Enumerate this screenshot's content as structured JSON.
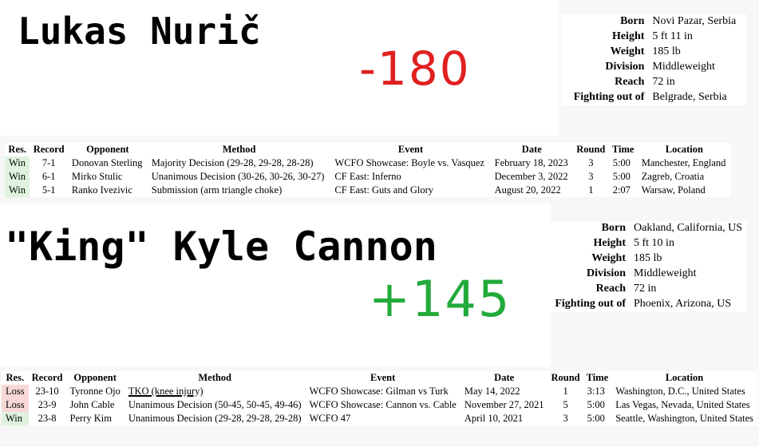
{
  "fighter1": {
    "name": "Lukas Nurič",
    "odds": "-180",
    "odds_color": "#e02020",
    "info": [
      {
        "label": "Born",
        "value": "Novi Pazar, Serbia"
      },
      {
        "label": "Height",
        "value": "5 ft 11 in"
      },
      {
        "label": "Weight",
        "value": "185 lb"
      },
      {
        "label": "Division",
        "value": "Middleweight"
      },
      {
        "label": "Reach",
        "value": "72 in"
      },
      {
        "label": "Fighting out of",
        "value": "Belgrade, Serbia"
      }
    ],
    "record_headers": [
      "Res.",
      "Record",
      "Opponent",
      "Method",
      "Event",
      "Date",
      "Round",
      "Time",
      "Location"
    ],
    "fights": [
      {
        "res": "Win",
        "record": "7-1",
        "opponent": "Donovan Sterling",
        "method": "Majority Decision (29-28, 29-28, 28-28)",
        "event": "WCFO Showcase: Boyle vs. Vasquez",
        "date": "February 18, 2023",
        "round": "3",
        "time": "5:00",
        "location": "Manchester, England"
      },
      {
        "res": "Win",
        "record": "6-1",
        "opponent": "Mirko Stulic",
        "method": "Unanimous Decision (30-26, 30-26, 30-27)",
        "event": "CF East: Inferno",
        "date": "December 3, 2022",
        "round": "3",
        "time": "5:00",
        "location": "Zagreb, Croatia"
      },
      {
        "res": "Win",
        "record": "5-1",
        "opponent": "Ranko Ivezivic",
        "method": "Submission (arm triangle choke)",
        "event": "CF East: Guts and Glory",
        "date": "August 20, 2022",
        "round": "1",
        "time": "2:07",
        "location": "Warsaw, Poland"
      }
    ]
  },
  "fighter2": {
    "name": "\"King\" Kyle Cannon",
    "odds": "+145",
    "odds_color": "#22aa3a",
    "info": [
      {
        "label": "Born",
        "value": "Oakland, California, US"
      },
      {
        "label": "Height",
        "value": "5 ft 10 in"
      },
      {
        "label": "Weight",
        "value": "185 lb"
      },
      {
        "label": "Division",
        "value": "Middleweight"
      },
      {
        "label": "Reach",
        "value": "72 in"
      },
      {
        "label": "Fighting out of",
        "value": "Phoenix, Arizona, US"
      }
    ],
    "record_headers": [
      "Res.",
      "Record",
      "Opponent",
      "Method",
      "Event",
      "Date",
      "Round",
      "Time",
      "Location"
    ],
    "fights": [
      {
        "res": "Loss",
        "record": "23-10",
        "opponent": "Tyronne Ojo",
        "method": "TKO (knee injury)",
        "event": "WCFO Showcase: Gilman vs Turk",
        "date": "May 14, 2022",
        "round": "1",
        "time": "3:13",
        "location": "Washington, D.C., United States"
      },
      {
        "res": "Loss",
        "record": "23-9",
        "opponent": "John Cable",
        "method": "Unanimous Decision (50-45, 50-45, 49-46)",
        "event": "WCFO Showcase: Cannon vs. Cable",
        "date": "November 27, 2021",
        "round": "5",
        "time": "5:00",
        "location": "Las Vegas, Nevada, United States"
      },
      {
        "res": "Win",
        "record": "23-8",
        "opponent": "Perry Kim",
        "method": "Unanimous Decision (29-28, 29-28, 29-28)",
        "event": "WCFO 47",
        "date": "April 10, 2021",
        "round": "3",
        "time": "5:00",
        "location": "Seattle, Washington, United States"
      }
    ]
  }
}
